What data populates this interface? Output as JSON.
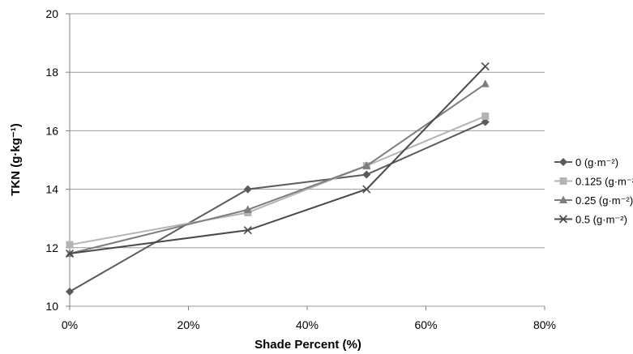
{
  "chart_data": {
    "type": "line",
    "xlabel": "Shade Percent (%)",
    "ylabel": "TKN (g·kg⁻¹)",
    "x": [
      0,
      30,
      50,
      70
    ],
    "x_ticks": [
      0,
      20,
      40,
      60,
      80
    ],
    "x_tick_labels": [
      "0%",
      "20%",
      "40%",
      "60%",
      "80%"
    ],
    "xlim": [
      0,
      80
    ],
    "y_ticks": [
      10,
      12,
      14,
      16,
      18,
      20
    ],
    "y_tick_labels": [
      "10",
      "12",
      "14",
      "16",
      "18",
      "20"
    ],
    "ylim": [
      10,
      20
    ],
    "grid": "horizontal",
    "legend_position": "right",
    "series": [
      {
        "name": "0 (g·m⁻²)",
        "values": [
          10.5,
          14.0,
          14.5,
          16.3
        ],
        "color": "#5a5a5a",
        "marker": "diamond"
      },
      {
        "name": "0.125 (g·m⁻²)",
        "values": [
          12.1,
          13.2,
          14.8,
          16.5
        ],
        "color": "#b4b4b4",
        "marker": "square"
      },
      {
        "name": "0.25 (g·m⁻²)",
        "values": [
          11.8,
          13.3,
          14.8,
          17.6
        ],
        "color": "#7d7d7d",
        "marker": "triangle"
      },
      {
        "name": "0.5 (g·m⁻²)",
        "values": [
          11.8,
          12.6,
          14.0,
          18.2
        ],
        "color": "#4a4a4a",
        "marker": "x"
      }
    ]
  }
}
